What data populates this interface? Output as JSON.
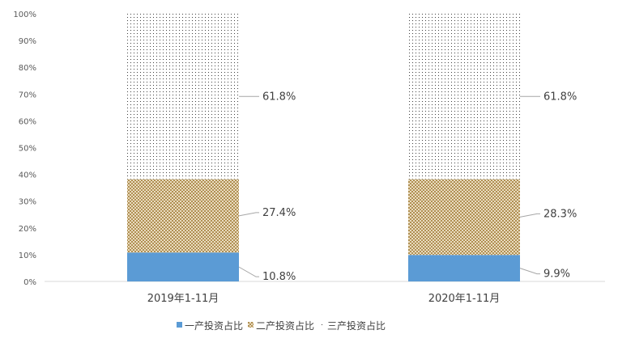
{
  "chart_data": {
    "type": "bar",
    "stacked": true,
    "categories": [
      "2019年1-11月",
      "2020年1-11月"
    ],
    "series": [
      {
        "name": "一产投资占比",
        "values": [
          10.8,
          9.9
        ],
        "labels": [
          "10.8%",
          "9.9%"
        ],
        "color": "#5b9bd5",
        "pattern": "solid"
      },
      {
        "name": "二产投资占比",
        "values": [
          27.4,
          28.3
        ],
        "labels": [
          "27.4%",
          "28.3%"
        ],
        "color": "#bf9b5a",
        "pattern": "crosshatch"
      },
      {
        "name": "三产投资占比",
        "values": [
          61.8,
          61.8
        ],
        "labels": [
          "61.8%",
          "61.8%"
        ],
        "color": "#404040",
        "pattern": "dots"
      }
    ],
    "yticks": [
      "0%",
      "10%",
      "20%",
      "30%",
      "40%",
      "50%",
      "60%",
      "70%",
      "80%",
      "90%",
      "100%"
    ],
    "ylim": [
      0,
      100
    ],
    "grid": false,
    "legend": "bottom",
    "title": "",
    "xlabel": "",
    "ylabel": ""
  }
}
